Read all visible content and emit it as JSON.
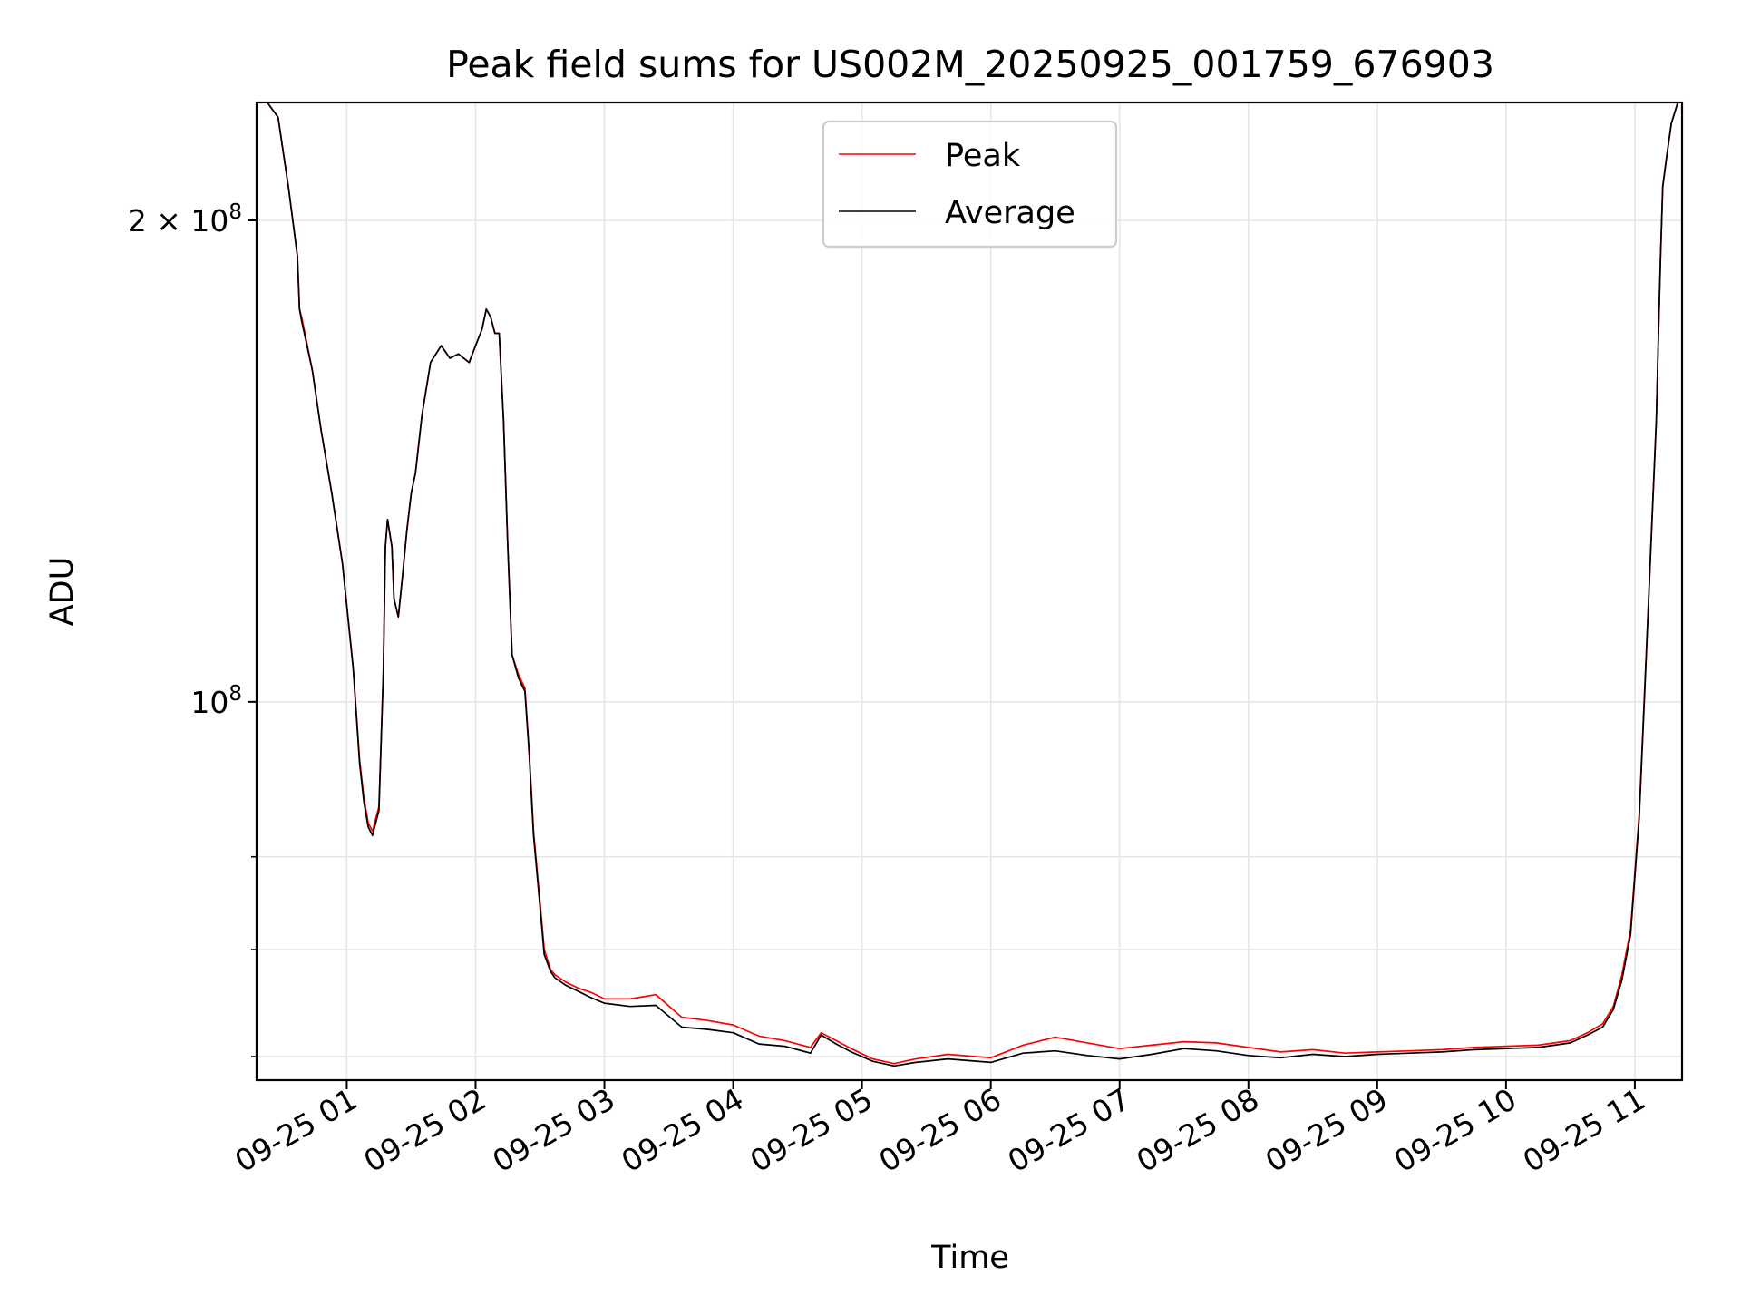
{
  "chart_data": {
    "type": "line",
    "title": "Peak field sums for US002M_20250925_001759_676903",
    "xlabel": "Time",
    "ylabel": "ADU",
    "yscale": "log",
    "ylim": [
      58000000.0,
      237000000.0
    ],
    "xlim": [
      "2025-09-25 00:18",
      "2025-09-25 11:22"
    ],
    "grid": true,
    "legend_position": "top-center",
    "xticks": [
      {
        "x": "2025-09-25 01:00",
        "label": "09-25 01"
      },
      {
        "x": "2025-09-25 02:00",
        "label": "09-25 02"
      },
      {
        "x": "2025-09-25 03:00",
        "label": "09-25 03"
      },
      {
        "x": "2025-09-25 04:00",
        "label": "09-25 04"
      },
      {
        "x": "2025-09-25 05:00",
        "label": "09-25 05"
      },
      {
        "x": "2025-09-25 06:00",
        "label": "09-25 06"
      },
      {
        "x": "2025-09-25 07:00",
        "label": "09-25 07"
      },
      {
        "x": "2025-09-25 08:00",
        "label": "09-25 08"
      },
      {
        "x": "2025-09-25 09:00",
        "label": "09-25 09"
      },
      {
        "x": "2025-09-25 10:00",
        "label": "09-25 10"
      },
      {
        "x": "2025-09-25 11:00",
        "label": "09-25 11"
      }
    ],
    "yticks_major": [
      {
        "y": 100000000,
        "base": "10",
        "exp": "8",
        "prefix": ""
      },
      {
        "y": 200000000,
        "base": "10",
        "exp": "8",
        "prefix": "2 × "
      }
    ],
    "yticks_minor": [
      60000000,
      70000000,
      80000000
    ],
    "series": [
      {
        "name": "Peak",
        "color": "#ff0000",
        "x": [
          "2025-09-25 00:18",
          "2025-09-25 00:23",
          "2025-09-25 00:28",
          "2025-09-25 00:33",
          "2025-09-25 00:37",
          "2025-09-25 00:38",
          "2025-09-25 00:39",
          "2025-09-25 00:44",
          "2025-09-25 00:48",
          "2025-09-25 00:53",
          "2025-09-25 00:58",
          "2025-09-25 01:03",
          "2025-09-25 01:06",
          "2025-09-25 01:08",
          "2025-09-25 01:10",
          "2025-09-25 01:12",
          "2025-09-25 01:15",
          "2025-09-25 01:17",
          "2025-09-25 01:18",
          "2025-09-25 01:19",
          "2025-09-25 01:21",
          "2025-09-25 01:22",
          "2025-09-25 01:24",
          "2025-09-25 01:26",
          "2025-09-25 01:28",
          "2025-09-25 01:30",
          "2025-09-25 01:32",
          "2025-09-25 01:35",
          "2025-09-25 01:39",
          "2025-09-25 01:44",
          "2025-09-25 01:48",
          "2025-09-25 01:52",
          "2025-09-25 01:57",
          "2025-09-25 02:00",
          "2025-09-25 02:03",
          "2025-09-25 02:05",
          "2025-09-25 02:07",
          "2025-09-25 02:09",
          "2025-09-25 02:11",
          "2025-09-25 02:13",
          "2025-09-25 02:15",
          "2025-09-25 02:17",
          "2025-09-25 02:20",
          "2025-09-25 02:23",
          "2025-09-25 02:25",
          "2025-09-25 02:27",
          "2025-09-25 02:30",
          "2025-09-25 02:32",
          "2025-09-25 02:35",
          "2025-09-25 02:37",
          "2025-09-25 02:42",
          "2025-09-25 02:48",
          "2025-09-25 02:54",
          "2025-09-25 03:00",
          "2025-09-25 03:12",
          "2025-09-25 03:24",
          "2025-09-25 03:36",
          "2025-09-25 03:48",
          "2025-09-25 04:00",
          "2025-09-25 04:12",
          "2025-09-25 04:24",
          "2025-09-25 04:36",
          "2025-09-25 04:41",
          "2025-09-25 04:48",
          "2025-09-25 04:55",
          "2025-09-25 05:05",
          "2025-09-25 05:15",
          "2025-09-25 05:25",
          "2025-09-25 05:40",
          "2025-09-25 06:00",
          "2025-09-25 06:15",
          "2025-09-25 06:30",
          "2025-09-25 06:45",
          "2025-09-25 07:00",
          "2025-09-25 07:15",
          "2025-09-25 07:30",
          "2025-09-25 07:45",
          "2025-09-25 08:00",
          "2025-09-25 08:15",
          "2025-09-25 08:30",
          "2025-09-25 08:45",
          "2025-09-25 09:00",
          "2025-09-25 09:15",
          "2025-09-25 09:30",
          "2025-09-25 09:45",
          "2025-09-25 10:00",
          "2025-09-25 10:15",
          "2025-09-25 10:30",
          "2025-09-25 10:38",
          "2025-09-25 10:45",
          "2025-09-25 10:50",
          "2025-09-25 10:54",
          "2025-09-25 10:58",
          "2025-09-25 11:02",
          "2025-09-25 11:05",
          "2025-09-25 11:08",
          "2025-09-25 11:10",
          "2025-09-25 11:11",
          "2025-09-25 11:12",
          "2025-09-25 11:13",
          "2025-09-25 11:15",
          "2025-09-25 11:17",
          "2025-09-25 11:20",
          "2025-09-25 11:22"
        ],
        "y": [
          237000000,
          237000000,
          232000000,
          209000000,
          190000000,
          176000000,
          174000000,
          161000000,
          148000000,
          135000000,
          122000000,
          105000000,
          92000000,
          87000000,
          84000000,
          83000000,
          86000000,
          104000000,
          125000000,
          130000000,
          125000000,
          116000000,
          113000000,
          120000000,
          128000000,
          135000000,
          139000000,
          151000000,
          163000000,
          167000000,
          164000000,
          165000000,
          163000000,
          167000000,
          171000000,
          176000000,
          174000000,
          170000000,
          170000000,
          150000000,
          125000000,
          107000000,
          104000000,
          102000000,
          93000000,
          83000000,
          75000000,
          70000000,
          68000000,
          67500000,
          66800000,
          66200000,
          65800000,
          65200000,
          65200000,
          65600000,
          63500000,
          63200000,
          62800000,
          61800000,
          61400000,
          60800000,
          62100000,
          61400000,
          60700000,
          59800000,
          59400000,
          59800000,
          60200000,
          59900000,
          61000000,
          61700000,
          61200000,
          60700000,
          61000000,
          61300000,
          61200000,
          60800000,
          60400000,
          60600000,
          60300000,
          60400000,
          60500000,
          60600000,
          60800000,
          60900000,
          61000000,
          61400000,
          62100000,
          62900000,
          64500000,
          67500000,
          72000000,
          85000000,
          105000000,
          130000000,
          150000000,
          170000000,
          190000000,
          210000000,
          220000000,
          230000000,
          237000000,
          237000000
        ]
      },
      {
        "name": "Average",
        "color": "#000000",
        "x": [
          "2025-09-25 00:18",
          "2025-09-25 00:23",
          "2025-09-25 00:28",
          "2025-09-25 00:33",
          "2025-09-25 00:37",
          "2025-09-25 00:38",
          "2025-09-25 00:39",
          "2025-09-25 00:44",
          "2025-09-25 00:48",
          "2025-09-25 00:53",
          "2025-09-25 00:58",
          "2025-09-25 01:03",
          "2025-09-25 01:06",
          "2025-09-25 01:08",
          "2025-09-25 01:10",
          "2025-09-25 01:12",
          "2025-09-25 01:15",
          "2025-09-25 01:17",
          "2025-09-25 01:18",
          "2025-09-25 01:19",
          "2025-09-25 01:21",
          "2025-09-25 01:22",
          "2025-09-25 01:24",
          "2025-09-25 01:26",
          "2025-09-25 01:28",
          "2025-09-25 01:30",
          "2025-09-25 01:32",
          "2025-09-25 01:35",
          "2025-09-25 01:39",
          "2025-09-25 01:44",
          "2025-09-25 01:48",
          "2025-09-25 01:52",
          "2025-09-25 01:57",
          "2025-09-25 02:00",
          "2025-09-25 02:03",
          "2025-09-25 02:05",
          "2025-09-25 02:07",
          "2025-09-25 02:09",
          "2025-09-25 02:11",
          "2025-09-25 02:13",
          "2025-09-25 02:15",
          "2025-09-25 02:17",
          "2025-09-25 02:20",
          "2025-09-25 02:23",
          "2025-09-25 02:25",
          "2025-09-25 02:27",
          "2025-09-25 02:30",
          "2025-09-25 02:32",
          "2025-09-25 02:35",
          "2025-09-25 02:37",
          "2025-09-25 02:42",
          "2025-09-25 02:48",
          "2025-09-25 02:54",
          "2025-09-25 03:00",
          "2025-09-25 03:12",
          "2025-09-25 03:24",
          "2025-09-25 03:36",
          "2025-09-25 03:48",
          "2025-09-25 04:00",
          "2025-09-25 04:12",
          "2025-09-25 04:24",
          "2025-09-25 04:36",
          "2025-09-25 04:41",
          "2025-09-25 04:48",
          "2025-09-25 04:55",
          "2025-09-25 05:05",
          "2025-09-25 05:15",
          "2025-09-25 05:25",
          "2025-09-25 05:40",
          "2025-09-25 06:00",
          "2025-09-25 06:15",
          "2025-09-25 06:30",
          "2025-09-25 06:45",
          "2025-09-25 07:00",
          "2025-09-25 07:15",
          "2025-09-25 07:30",
          "2025-09-25 07:45",
          "2025-09-25 08:00",
          "2025-09-25 08:15",
          "2025-09-25 08:30",
          "2025-09-25 08:45",
          "2025-09-25 09:00",
          "2025-09-25 09:15",
          "2025-09-25 09:30",
          "2025-09-25 09:45",
          "2025-09-25 10:00",
          "2025-09-25 10:15",
          "2025-09-25 10:30",
          "2025-09-25 10:38",
          "2025-09-25 10:45",
          "2025-09-25 10:50",
          "2025-09-25 10:54",
          "2025-09-25 10:58",
          "2025-09-25 11:02",
          "2025-09-25 11:05",
          "2025-09-25 11:08",
          "2025-09-25 11:10",
          "2025-09-25 11:11",
          "2025-09-25 11:12",
          "2025-09-25 11:13",
          "2025-09-25 11:15",
          "2025-09-25 11:17",
          "2025-09-25 11:20",
          "2025-09-25 11:22"
        ],
        "y": [
          237000000,
          237000000,
          232000000,
          209000000,
          190000000,
          176000000,
          173000000,
          161000000,
          148000000,
          135000000,
          122000000,
          105000000,
          91500000,
          86500000,
          83500000,
          82500000,
          85500000,
          104000000,
          125000000,
          130000000,
          125000000,
          116000000,
          113000000,
          120000000,
          128000000,
          135000000,
          139000000,
          151000000,
          163000000,
          167000000,
          164000000,
          165000000,
          163000000,
          167000000,
          171000000,
          176000000,
          174000000,
          170000000,
          170000000,
          150000000,
          125000000,
          107000000,
          103500000,
          101500000,
          92500000,
          82500000,
          74500000,
          69500000,
          67800000,
          67200000,
          66500000,
          65900000,
          65300000,
          64800000,
          64500000,
          64600000,
          62600000,
          62400000,
          62100000,
          61100000,
          60900000,
          60300000,
          61900000,
          61100000,
          60400000,
          59600000,
          59200000,
          59500000,
          59800000,
          59500000,
          60300000,
          60500000,
          60100000,
          59800000,
          60200000,
          60700000,
          60500000,
          60100000,
          59900000,
          60200000,
          60000000,
          60200000,
          60300000,
          60400000,
          60600000,
          60700000,
          60800000,
          61200000,
          61900000,
          62600000,
          64200000,
          67000000,
          71500000,
          84500000,
          104500000,
          130000000,
          150000000,
          170000000,
          190000000,
          210000000,
          220000000,
          230000000,
          237000000,
          237000000
        ]
      }
    ]
  }
}
